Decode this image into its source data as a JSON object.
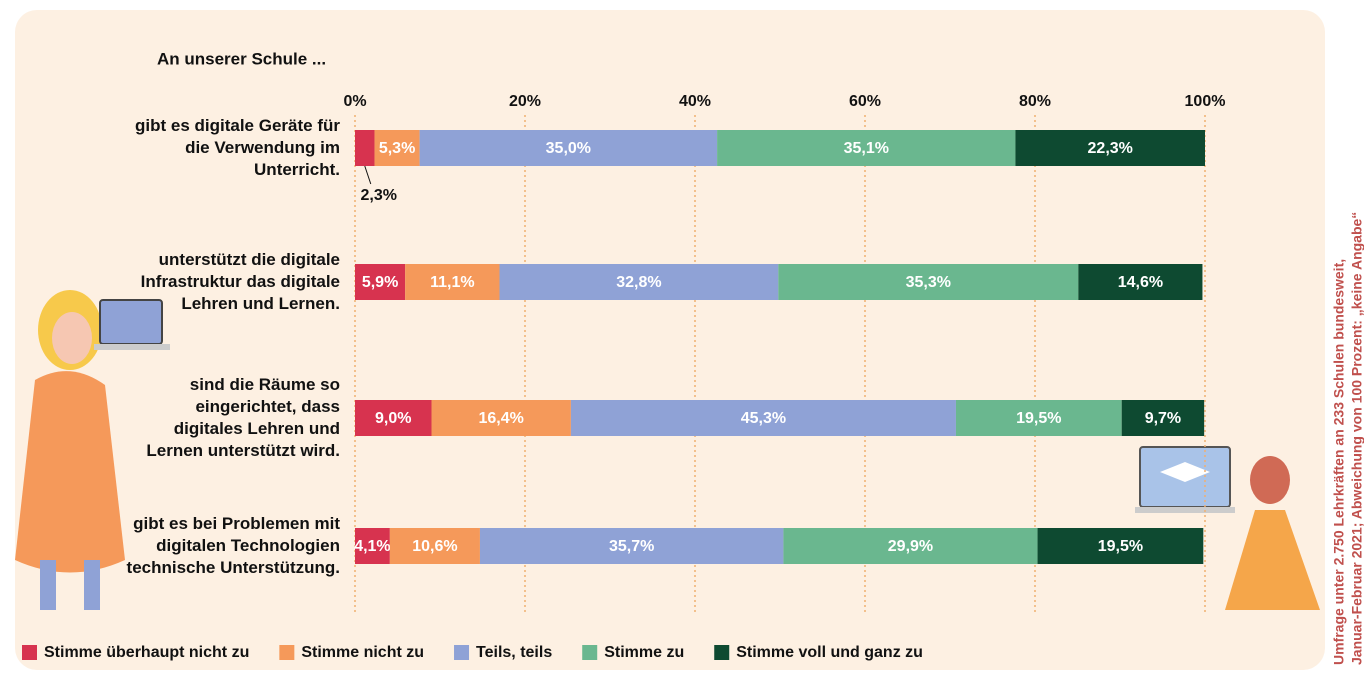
{
  "chart_data": {
    "type": "stacked_bar_horizontal",
    "title": "An unserer Schule ...",
    "categories": [
      "gibt es digitale Geräte für die Verwendung im Unterricht.",
      "unterstützt die digitale Infrastruktur das digitale Lehren und Lernen.",
      "sind die Räume so eingerichtet, dass digitales Lehren und Lernen unterstützt wird.",
      "gibt es bei Problemen mit digitalen Technologien technische Unterstützung."
    ],
    "series": [
      {
        "name": "Stimme überhaupt nicht zu",
        "color": "#d7334f",
        "values": [
          2.3,
          5.9,
          9.0,
          4.1
        ],
        "value_labels": [
          "2,3%",
          "5,9%",
          "9,0%",
          "4,1%"
        ]
      },
      {
        "name": "Stimme nicht zu",
        "color": "#f5995a",
        "values": [
          5.3,
          11.1,
          16.4,
          10.6
        ],
        "value_labels": [
          "5,3%",
          "11,1%",
          "16,4%",
          "10,6%"
        ]
      },
      {
        "name": "Teils, teils",
        "color": "#8fa2d6",
        "values": [
          35.0,
          32.8,
          45.3,
          35.7
        ],
        "value_labels": [
          "35,0%",
          "32,8%",
          "45,3%",
          "35,7%"
        ]
      },
      {
        "name": "Stimme zu",
        "color": "#6ab78f",
        "values": [
          35.1,
          35.3,
          19.5,
          29.9
        ],
        "value_labels": [
          "35,1%",
          "35,3%",
          "19,5%",
          "29,9%"
        ]
      },
      {
        "name": "Stimme voll und ganz zu",
        "color": "#0e4a31",
        "values": [
          22.3,
          14.6,
          9.7,
          19.5
        ],
        "value_labels": [
          "22,3%",
          "14,6%",
          "9,7%",
          "19,5%"
        ]
      }
    ],
    "xlim": [
      0,
      100
    ],
    "xticks": [
      {
        "value": 0,
        "label": "0%"
      },
      {
        "value": 20,
        "label": "20%"
      },
      {
        "value": 40,
        "label": "40%"
      },
      {
        "value": 60,
        "label": "60%"
      },
      {
        "value": 80,
        "label": "80%"
      },
      {
        "value": 100,
        "label": "100%"
      }
    ],
    "grid": true,
    "note": [
      "Umfrage unter 2.750 Lehrkräften an 233 Schulen bundesweit,",
      "Januar-Februar 2021; Abweichung von 100 Prozent: „keine Angabe“"
    ]
  }
}
